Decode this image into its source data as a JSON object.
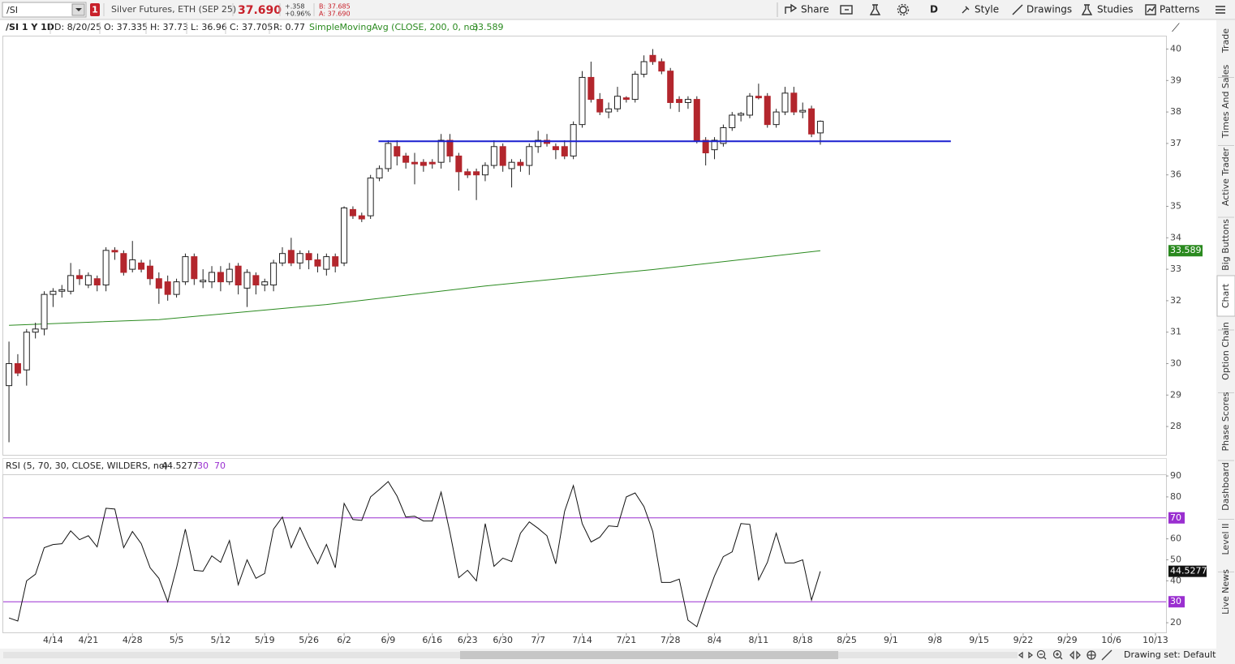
{
  "toolbar": {
    "symbol": "/SI",
    "alert_count": "1",
    "description": "Silver Futures, ETH (SEP 25)",
    "last": "37.690",
    "net_change": "+.358",
    "pct_change": "+0.96%",
    "bid": "B: 37.685",
    "ask": "A: 37.690",
    "buttons": [
      "Share",
      "D",
      "Style",
      "Drawings",
      "Studies",
      "Patterns"
    ]
  },
  "header": {
    "title": "/SI 1 Y 1D",
    "fields": [
      "D: 8/20/25",
      "O: 37.335",
      "H: 37.73",
      "L: 36.96",
      "C: 37.705",
      "R: 0.77"
    ]
  },
  "side_tabs": [
    "Trade",
    "Times And Sales",
    "Active Trader",
    "Big Buttons",
    "Chart",
    "Option Chain",
    "Phase Scores",
    "Dashboard",
    "Level II",
    "Live News"
  ],
  "status": {
    "drawing_set": "Drawing set: Default"
  },
  "chart_data": [
    {
      "type": "candlestick",
      "xlim": [
        -0.65,
        131.2
      ],
      "ylim": [
        27.1,
        40.4
      ],
      "yticks": [
        28,
        29,
        30,
        31,
        32,
        33,
        34,
        35,
        36,
        37,
        38,
        39,
        40
      ],
      "grid": false,
      "up_color": "#ffffff",
      "down_color": "#b3262d",
      "open": [
        29.3,
        30.0,
        29.8,
        31.0,
        31.1,
        32.2,
        32.3,
        32.3,
        32.8,
        32.5,
        32.7,
        32.5,
        33.6,
        33.5,
        33.0,
        33.2,
        33.1,
        32.7,
        32.6,
        32.2,
        32.6,
        33.4,
        32.6,
        32.6,
        32.9,
        32.6,
        33.1,
        32.4,
        32.8,
        32.5,
        32.5,
        33.2,
        33.6,
        33.2,
        33.5,
        33.3,
        33.0,
        33.4,
        33.2,
        34.9,
        34.7,
        34.7,
        35.9,
        36.2,
        36.9,
        36.6,
        36.4,
        36.4,
        36.4,
        36.4,
        37.1,
        36.6,
        36.1,
        36.1,
        36.0,
        36.3,
        36.9,
        36.2,
        36.4,
        36.3,
        36.9,
        37.1,
        36.9,
        36.9,
        36.6,
        37.6,
        39.1,
        38.4,
        38.0,
        38.1,
        38.45,
        38.4,
        39.2,
        39.8,
        39.6,
        39.3,
        38.4,
        38.3,
        38.4,
        37.1,
        36.8,
        37.0,
        37.5,
        37.9,
        37.9,
        38.5,
        38.5,
        37.6,
        38.0,
        38.6,
        38.0,
        38.1,
        37.335
      ],
      "high": [
        30.7,
        30.3,
        31.1,
        31.3,
        32.3,
        32.4,
        32.5,
        33.2,
        33.0,
        32.9,
        32.8,
        33.7,
        33.7,
        33.6,
        33.9,
        33.3,
        33.3,
        32.9,
        32.8,
        32.7,
        33.5,
        33.5,
        33.0,
        33.1,
        33.1,
        33.2,
        33.2,
        33.0,
        32.9,
        32.7,
        33.3,
        33.7,
        34.0,
        33.6,
        33.6,
        33.5,
        33.5,
        33.5,
        35.0,
        35.0,
        34.8,
        36.0,
        36.3,
        37.1,
        37.1,
        36.7,
        36.7,
        36.5,
        36.5,
        37.3,
        37.3,
        36.7,
        36.2,
        36.2,
        36.4,
        37.1,
        37.0,
        36.5,
        36.5,
        37.0,
        37.4,
        37.3,
        37.0,
        37.1,
        37.7,
        39.3,
        39.6,
        38.6,
        38.3,
        38.8,
        38.5,
        39.3,
        39.8,
        40.0,
        39.7,
        39.4,
        38.5,
        38.5,
        38.5,
        37.2,
        37.2,
        37.6,
        38.0,
        38.0,
        38.6,
        38.9,
        38.6,
        38.1,
        38.8,
        38.8,
        38.3,
        38.2,
        37.73
      ],
      "low": [
        27.5,
        29.6,
        29.3,
        30.8,
        30.9,
        31.8,
        32.1,
        32.2,
        32.5,
        32.4,
        32.3,
        32.3,
        33.3,
        32.8,
        32.9,
        32.9,
        32.5,
        31.9,
        32.0,
        32.1,
        32.5,
        32.5,
        32.4,
        32.4,
        32.3,
        32.5,
        32.2,
        31.8,
        32.2,
        32.3,
        32.3,
        33.1,
        33.1,
        33.0,
        33.0,
        32.9,
        32.8,
        32.9,
        33.1,
        34.6,
        34.5,
        34.6,
        35.8,
        36.1,
        36.3,
        36.2,
        35.7,
        36.1,
        36.2,
        36.2,
        36.4,
        35.5,
        35.9,
        35.2,
        35.8,
        36.2,
        36.1,
        35.6,
        36.1,
        36.0,
        36.7,
        36.9,
        36.5,
        36.5,
        36.5,
        37.5,
        38.3,
        37.9,
        37.8,
        38.0,
        38.3,
        38.3,
        39.1,
        39.5,
        39.2,
        38.1,
        38.0,
        38.1,
        37.0,
        36.3,
        36.5,
        36.9,
        37.4,
        37.7,
        37.8,
        38.4,
        37.5,
        37.5,
        37.9,
        37.9,
        37.8,
        37.2,
        36.96
      ],
      "close": [
        30.0,
        29.7,
        31.0,
        31.1,
        32.2,
        32.3,
        32.35,
        32.8,
        32.7,
        32.8,
        32.5,
        33.6,
        33.55,
        32.9,
        33.3,
        33.0,
        32.7,
        32.4,
        32.2,
        32.6,
        33.4,
        32.7,
        32.65,
        32.9,
        32.6,
        33.0,
        32.5,
        32.9,
        32.5,
        32.6,
        33.2,
        33.5,
        33.2,
        33.5,
        33.3,
        33.1,
        33.4,
        33.1,
        34.95,
        34.7,
        34.6,
        35.9,
        36.2,
        37.0,
        36.6,
        36.4,
        36.35,
        36.3,
        36.35,
        37.1,
        36.6,
        36.1,
        36.0,
        36.0,
        36.3,
        36.9,
        36.3,
        36.4,
        36.3,
        36.9,
        37.1,
        37.0,
        36.8,
        36.6,
        37.6,
        39.1,
        38.4,
        38.0,
        38.1,
        38.5,
        38.4,
        39.2,
        39.6,
        39.6,
        39.3,
        38.3,
        38.3,
        38.4,
        37.1,
        36.7,
        37.1,
        37.5,
        37.9,
        37.95,
        38.5,
        38.45,
        37.6,
        38.0,
        38.6,
        38.0,
        38.05,
        37.3,
        37.705
      ],
      "sma": {
        "name": "SimpleMovingAvg (CLOSE, 200, 0, no)",
        "color": "#2a8a1f",
        "x": [
          0,
          17,
          36,
          54,
          73,
          92
        ],
        "values": [
          31.22,
          31.4,
          31.88,
          32.47,
          32.99,
          33.589
        ]
      },
      "price_line": {
        "value": 37.07,
        "from": 41.9,
        "to": 106.8,
        "color": "#1a1fd0"
      }
    },
    {
      "type": "line",
      "title": "RSI (5, 70, 30, CLOSE, WILDERS, no)",
      "xlim": [
        -0.65,
        131.2
      ],
      "ylim": [
        15.4,
        90.4
      ],
      "yticks": [
        20,
        40,
        50,
        60,
        80,
        90
      ],
      "grid": false,
      "overbought": 70,
      "oversold": 30,
      "band_color": "#9a2fd0",
      "color": "#111111",
      "xticks": [
        {
          "value": 5,
          "label": "4/14"
        },
        {
          "value": 9,
          "label": "4/21"
        },
        {
          "value": 14,
          "label": "4/28"
        },
        {
          "value": 19,
          "label": "5/5"
        },
        {
          "value": 24,
          "label": "5/12"
        },
        {
          "value": 29,
          "label": "5/19"
        },
        {
          "value": 34,
          "label": "5/26"
        },
        {
          "value": 38,
          "label": "6/2"
        },
        {
          "value": 43,
          "label": "6/9"
        },
        {
          "value": 48,
          "label": "6/16"
        },
        {
          "value": 52,
          "label": "6/23"
        },
        {
          "value": 56,
          "label": "6/30"
        },
        {
          "value": 60,
          "label": "7/7"
        },
        {
          "value": 65,
          "label": "7/14"
        },
        {
          "value": 70,
          "label": "7/21"
        },
        {
          "value": 75,
          "label": "7/28"
        },
        {
          "value": 80,
          "label": "8/4"
        },
        {
          "value": 85,
          "label": "8/11"
        },
        {
          "value": 90,
          "label": "8/18"
        },
        {
          "value": 95,
          "label": "8/25"
        },
        {
          "value": 100,
          "label": "9/1"
        },
        {
          "value": 105,
          "label": "9/8"
        },
        {
          "value": 110,
          "label": "9/15"
        },
        {
          "value": 115,
          "label": "9/22"
        },
        {
          "value": 120,
          "label": "9/29"
        },
        {
          "value": 125,
          "label": "10/6"
        },
        {
          "value": 130,
          "label": "10/13"
        }
      ],
      "values": [
        22.3,
        20.8,
        40,
        43.1,
        55.8,
        57.3,
        57.7,
        63.8,
        59.6,
        61.5,
        56.2,
        74.6,
        74.2,
        55.8,
        63.5,
        57.7,
        46.2,
        41.2,
        30,
        46.2,
        64.6,
        45,
        44.6,
        51.9,
        48.8,
        59.2,
        38.1,
        50,
        41.2,
        43.5,
        64.6,
        70.4,
        55.8,
        65.4,
        56.2,
        48.1,
        57.3,
        46.2,
        76.9,
        69.2,
        68.8,
        80,
        83.5,
        87.3,
        80.4,
        70.4,
        70.8,
        68.5,
        68.5,
        82.3,
        63.1,
        41.5,
        45,
        40,
        67.3,
        46.9,
        50.8,
        49.2,
        62.7,
        68.1,
        65,
        61.5,
        48.1,
        73.1,
        85.4,
        67.3,
        58.5,
        60.8,
        66.2,
        65.8,
        80,
        81.9,
        75.4,
        63.5,
        39.2,
        39.2,
        40.8,
        21.2,
        18.1,
        30.8,
        42.3,
        51.5,
        53.8,
        67.3,
        66.9,
        40.4,
        48.8,
        62.7,
        48.5,
        48.5,
        50,
        30.8,
        44.5277
      ]
    }
  ]
}
